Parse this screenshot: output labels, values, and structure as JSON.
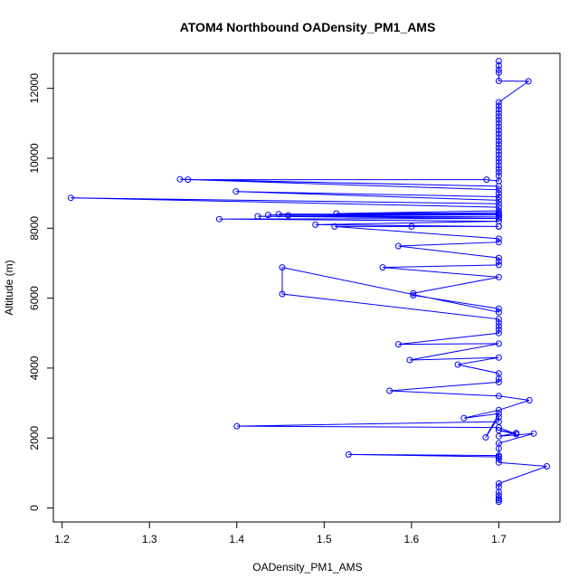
{
  "chart_data": {
    "type": "scatter",
    "title": "ATOM4 Northbound OADensity_PM1_AMS",
    "xlabel": "OADensity_PM1_AMS",
    "ylabel": "Altitude (m)",
    "xlim": [
      1.19,
      1.77
    ],
    "ylim": [
      -400,
      13000
    ],
    "x_ticks": [
      "1.2",
      "1.3",
      "1.4",
      "1.5",
      "1.6",
      "1.7"
    ],
    "x_tick_values": [
      1.2,
      1.3,
      1.4,
      1.5,
      1.6,
      1.7
    ],
    "y_ticks": [
      "0",
      "2000",
      "4000",
      "6000",
      "8000",
      "10000",
      "12000"
    ],
    "y_tick_values": [
      0,
      2000,
      4000,
      6000,
      8000,
      10000,
      12000
    ],
    "grid": false,
    "legend": null,
    "series_color": "#0000ff",
    "series": [
      {
        "points": [
          [
            1.7,
            180
          ],
          [
            1.7,
            230
          ],
          [
            1.7,
            280
          ],
          [
            1.7,
            360
          ],
          [
            1.7,
            460
          ],
          [
            1.7,
            600
          ],
          [
            1.7,
            700
          ],
          [
            1.755,
            1190
          ],
          [
            1.7,
            1300
          ],
          [
            1.7,
            1400
          ],
          [
            1.7,
            1500
          ],
          [
            1.528,
            1530
          ],
          [
            1.7,
            1460
          ],
          [
            1.7,
            1700
          ],
          [
            1.7,
            1850
          ],
          [
            1.74,
            2130
          ],
          [
            1.7,
            2050
          ],
          [
            1.72,
            2140
          ],
          [
            1.7,
            2220
          ],
          [
            1.72,
            2110
          ],
          [
            1.7,
            2300
          ],
          [
            1.4,
            2340
          ],
          [
            1.7,
            2470
          ],
          [
            1.7,
            2600
          ],
          [
            1.685,
            2020
          ],
          [
            1.7,
            2700
          ],
          [
            1.66,
            2570
          ],
          [
            1.7,
            2800
          ],
          [
            1.735,
            3080
          ],
          [
            1.7,
            3200
          ],
          [
            1.575,
            3350
          ],
          [
            1.7,
            3600
          ],
          [
            1.7,
            3700
          ],
          [
            1.7,
            3850
          ],
          [
            1.653,
            4100
          ],
          [
            1.7,
            4300
          ],
          [
            1.598,
            4230
          ],
          [
            1.7,
            4700
          ],
          [
            1.585,
            4680
          ],
          [
            1.7,
            5000
          ],
          [
            1.7,
            5100
          ],
          [
            1.7,
            5200
          ],
          [
            1.7,
            5300
          ],
          [
            1.7,
            5400
          ],
          [
            1.452,
            6120
          ],
          [
            1.452,
            6880
          ],
          [
            1.7,
            5600
          ],
          [
            1.7,
            5700
          ],
          [
            1.602,
            6080
          ],
          [
            1.602,
            6140
          ],
          [
            1.7,
            6600
          ],
          [
            1.567,
            6880
          ],
          [
            1.7,
            6950
          ],
          [
            1.7,
            7050
          ],
          [
            1.7,
            7150
          ],
          [
            1.585,
            7490
          ],
          [
            1.7,
            7600
          ],
          [
            1.7,
            7700
          ],
          [
            1.512,
            8050
          ],
          [
            1.7,
            8050
          ],
          [
            1.6,
            8050
          ],
          [
            1.7,
            8050
          ],
          [
            1.49,
            8100
          ],
          [
            1.7,
            8200
          ],
          [
            1.38,
            8260
          ],
          [
            1.7,
            8280
          ],
          [
            1.424,
            8340
          ],
          [
            1.7,
            8320
          ],
          [
            1.436,
            8380
          ],
          [
            1.7,
            8380
          ],
          [
            1.448,
            8400
          ],
          [
            1.7,
            8400
          ],
          [
            1.459,
            8370
          ],
          [
            1.7,
            8440
          ],
          [
            1.514,
            8420
          ],
          [
            1.7,
            8500
          ],
          [
            1.7,
            8600
          ],
          [
            1.21,
            8870
          ],
          [
            1.7,
            8700
          ],
          [
            1.7,
            8800
          ],
          [
            1.399,
            9050
          ],
          [
            1.7,
            8900
          ],
          [
            1.7,
            9000
          ],
          [
            1.7,
            9100
          ],
          [
            1.335,
            9400
          ],
          [
            1.7,
            9200
          ],
          [
            1.344,
            9390
          ],
          [
            1.686,
            9390
          ],
          [
            1.7,
            9350
          ],
          [
            1.7,
            9500
          ],
          [
            1.7,
            9600
          ],
          [
            1.7,
            9700
          ],
          [
            1.7,
            9800
          ],
          [
            1.7,
            9900
          ],
          [
            1.7,
            10000
          ],
          [
            1.7,
            10100
          ],
          [
            1.7,
            10200
          ],
          [
            1.7,
            10300
          ],
          [
            1.7,
            10400
          ],
          [
            1.7,
            10500
          ],
          [
            1.7,
            10600
          ],
          [
            1.7,
            10700
          ],
          [
            1.7,
            10800
          ],
          [
            1.7,
            10900
          ],
          [
            1.7,
            11000
          ],
          [
            1.7,
            11100
          ],
          [
            1.7,
            11200
          ],
          [
            1.7,
            11300
          ],
          [
            1.7,
            11400
          ],
          [
            1.7,
            11500
          ],
          [
            1.7,
            11600
          ],
          [
            1.734,
            12200
          ],
          [
            1.7,
            12210
          ],
          [
            1.7,
            12450
          ],
          [
            1.7,
            12530
          ],
          [
            1.7,
            12650
          ],
          [
            1.7,
            12780
          ]
        ]
      }
    ]
  }
}
